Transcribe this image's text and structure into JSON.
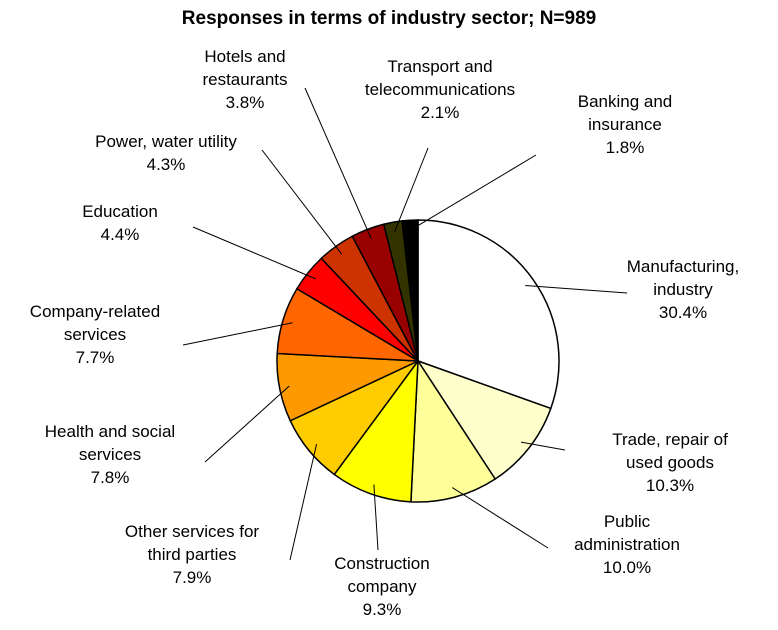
{
  "chart_data": {
    "type": "pie",
    "title": "Responses in terms of industry sector; N=989",
    "categories": [
      "Manufacturing, industry",
      "Trade, repair of used goods",
      "Public administration",
      "Construction company",
      "Other services for third parties",
      "Health and social services",
      "Company-related services",
      "Education",
      "Power, water utility",
      "Hotels and restaurants",
      "Transport and telecommunications",
      "Banking and insurance"
    ],
    "values": [
      30.4,
      10.3,
      10.0,
      9.3,
      7.9,
      7.8,
      7.7,
      4.4,
      4.3,
      3.8,
      2.1,
      1.8
    ],
    "value_labels": [
      "30.4%",
      "10.3%",
      "10.0%",
      "9.3%",
      "7.9%",
      "7.8%",
      "7.7%",
      "4.4%",
      "4.3%",
      "3.8%",
      "2.1%",
      "1.8%"
    ],
    "colors": [
      "#ffffff",
      "#ffffcc",
      "#ffff99",
      "#ffff00",
      "#ffcc00",
      "#ff9900",
      "#ff6600",
      "#ff0000",
      "#cc3300",
      "#990000",
      "#333300",
      "#000000"
    ]
  }
}
